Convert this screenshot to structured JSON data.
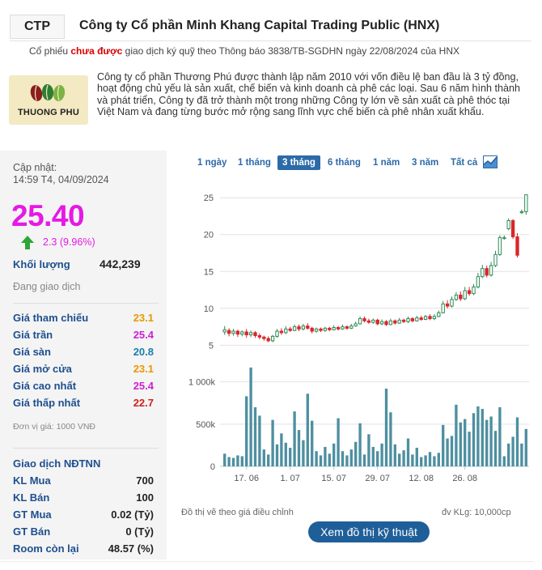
{
  "header": {
    "ticker": "CTP",
    "company_name": "Công ty Cổ phần Minh Khang Capital Trading Public (HNX)",
    "margin_note_before": "Cổ phiếu ",
    "margin_note_highlight": "chưa được",
    "margin_note_after": " giao dịch ký quỹ theo Thông báo 3838/TB-SGDHN ngày 22/08/2024 của HNX"
  },
  "logo": {
    "text": "THUONG PHU"
  },
  "description": "Công ty cổ phần Thương Phú được thành lập năm 2010 với vốn điều lệ ban đầu là 3 tỷ đồng, hoạt động chủ yếu là sản xuất, chế biến và kinh doanh cà phê các loại. Sau 6 năm hình thành và phát triển, Công ty đã trở thành một trong những Công ty lớn về sản xuất cà phê thóc tại Việt Nam và đang từng bước mở rộng sang lĩnh vực chế biến cà phê nhân xuất khẩu.",
  "quote": {
    "updated_label": "Cập nhật:",
    "updated_time": "14:59 T4, 04/09/2024",
    "price": "25.40",
    "change": "2.3 (9.96%)",
    "volume_label": "Khối lượng",
    "volume": "442,239",
    "status": "Đang giao dịch"
  },
  "price_rows": [
    {
      "label": "Giá tham chiếu",
      "value": "23.1",
      "color": "#e69a00"
    },
    {
      "label": "Giá trần",
      "value": "25.4",
      "color": "#d11fd1"
    },
    {
      "label": "Giá sàn",
      "value": "20.8",
      "color": "#1a7fae"
    },
    {
      "label": "Giá mở cửa",
      "value": "23.1",
      "color": "#e69a00"
    },
    {
      "label": "Giá cao nhất",
      "value": "25.4",
      "color": "#d11fd1"
    },
    {
      "label": "Giá thấp nhất",
      "value": "22.7",
      "color": "#d11f1f"
    }
  ],
  "unit_note": "Đơn vị giá: 1000 VNĐ",
  "foreign": {
    "title": "Giao dịch NĐTNN",
    "rows": [
      {
        "label": "KL Mua",
        "value": "700"
      },
      {
        "label": "KL Bán",
        "value": "100"
      },
      {
        "label": "GT Mua",
        "value": "0.02 (Tỷ)"
      },
      {
        "label": "GT Bán",
        "value": "0 (Tỷ)"
      },
      {
        "label": "Room còn lại",
        "value": "48.57 (%)"
      }
    ]
  },
  "range_tabs": [
    "1 ngày",
    "1 tháng",
    "3 tháng",
    "6 tháng",
    "1 năm",
    "3 năm",
    "Tất cả"
  ],
  "active_tab": 2,
  "chart_note": "Đồ thị vẽ theo giá điều chỉnh",
  "volume_note": "đv KLg: 10,000cp",
  "tech_button": "Xem đồ thị kỹ thuật",
  "colors": {
    "up": "#2e8b57",
    "down": "#d9262b",
    "volume": "#4e8fa0",
    "accent": "#2d6aa8",
    "price": "#e619e6"
  },
  "chart_data": {
    "type": "candlestick",
    "price_axis": {
      "ticks": [
        5,
        10,
        15,
        20,
        25
      ],
      "range": [
        3.5,
        27
      ]
    },
    "volume_axis": {
      "ticks": [
        0,
        500000,
        1000000
      ],
      "tick_labels": [
        "0",
        "500k",
        "1 000k"
      ],
      "range": [
        0,
        1150000
      ]
    },
    "x_tick_labels": [
      "17. 06",
      "1. 07",
      "15. 07",
      "29. 07",
      "12. 08",
      "26. 08"
    ],
    "candles": [
      {
        "o": 6.8,
        "c": 7.1,
        "h": 7.6,
        "l": 6.4,
        "v": 150000
      },
      {
        "o": 7.0,
        "c": 6.6,
        "h": 7.3,
        "l": 6.2,
        "v": 110000
      },
      {
        "o": 6.6,
        "c": 6.9,
        "h": 7.2,
        "l": 6.3,
        "v": 100000
      },
      {
        "o": 6.9,
        "c": 6.5,
        "h": 7.1,
        "l": 6.1,
        "v": 130000
      },
      {
        "o": 6.5,
        "c": 6.8,
        "h": 7.0,
        "l": 6.2,
        "v": 120000
      },
      {
        "o": 6.8,
        "c": 6.4,
        "h": 7.2,
        "l": 6.0,
        "v": 830000
      },
      {
        "o": 6.4,
        "c": 6.7,
        "h": 7.0,
        "l": 6.1,
        "v": 1170000
      },
      {
        "o": 6.7,
        "c": 6.3,
        "h": 6.9,
        "l": 6.0,
        "v": 700000
      },
      {
        "o": 6.3,
        "c": 6.1,
        "h": 6.6,
        "l": 5.8,
        "v": 600000
      },
      {
        "o": 6.1,
        "c": 5.9,
        "h": 6.3,
        "l": 5.6,
        "v": 200000
      },
      {
        "o": 5.9,
        "c": 5.6,
        "h": 6.2,
        "l": 5.4,
        "v": 140000
      },
      {
        "o": 5.6,
        "c": 6.2,
        "h": 6.4,
        "l": 5.4,
        "v": 550000
      },
      {
        "o": 6.2,
        "c": 6.9,
        "h": 7.2,
        "l": 6.0,
        "v": 260000
      },
      {
        "o": 6.9,
        "c": 6.7,
        "h": 7.3,
        "l": 6.4,
        "v": 390000
      },
      {
        "o": 6.7,
        "c": 7.2,
        "h": 7.6,
        "l": 6.5,
        "v": 280000
      },
      {
        "o": 7.2,
        "c": 7.0,
        "h": 7.5,
        "l": 6.8,
        "v": 220000
      },
      {
        "o": 7.0,
        "c": 7.5,
        "h": 7.8,
        "l": 6.9,
        "v": 650000
      },
      {
        "o": 7.5,
        "c": 7.2,
        "h": 7.8,
        "l": 6.9,
        "v": 430000
      },
      {
        "o": 7.2,
        "c": 7.6,
        "h": 7.9,
        "l": 7.0,
        "v": 310000
      },
      {
        "o": 7.6,
        "c": 7.3,
        "h": 8.0,
        "l": 7.1,
        "v": 860000
      },
      {
        "o": 7.3,
        "c": 6.9,
        "h": 7.5,
        "l": 6.6,
        "v": 540000
      },
      {
        "o": 6.9,
        "c": 7.2,
        "h": 7.4,
        "l": 6.7,
        "v": 180000
      },
      {
        "o": 7.2,
        "c": 7.0,
        "h": 7.4,
        "l": 6.8,
        "v": 130000
      },
      {
        "o": 7.0,
        "c": 7.3,
        "h": 7.5,
        "l": 6.8,
        "v": 230000
      },
      {
        "o": 7.3,
        "c": 7.1,
        "h": 7.5,
        "l": 6.9,
        "v": 150000
      },
      {
        "o": 7.1,
        "c": 7.4,
        "h": 7.7,
        "l": 7.0,
        "v": 270000
      },
      {
        "o": 7.4,
        "c": 7.2,
        "h": 7.6,
        "l": 7.0,
        "v": 570000
      },
      {
        "o": 7.2,
        "c": 7.5,
        "h": 7.8,
        "l": 7.1,
        "v": 180000
      },
      {
        "o": 7.5,
        "c": 7.3,
        "h": 7.7,
        "l": 7.1,
        "v": 130000
      },
      {
        "o": 7.3,
        "c": 7.6,
        "h": 7.9,
        "l": 7.2,
        "v": 200000
      },
      {
        "o": 7.6,
        "c": 7.9,
        "h": 8.2,
        "l": 7.5,
        "v": 290000
      },
      {
        "o": 7.9,
        "c": 8.6,
        "h": 8.9,
        "l": 7.8,
        "v": 510000
      },
      {
        "o": 8.6,
        "c": 8.3,
        "h": 8.9,
        "l": 8.1,
        "v": 140000
      },
      {
        "o": 8.3,
        "c": 8.1,
        "h": 8.6,
        "l": 7.9,
        "v": 380000
      },
      {
        "o": 8.1,
        "c": 8.4,
        "h": 8.6,
        "l": 7.9,
        "v": 230000
      },
      {
        "o": 8.4,
        "c": 7.9,
        "h": 8.6,
        "l": 7.7,
        "v": 180000
      },
      {
        "o": 7.9,
        "c": 8.2,
        "h": 8.5,
        "l": 7.7,
        "v": 270000
      },
      {
        "o": 8.2,
        "c": 7.8,
        "h": 8.4,
        "l": 7.6,
        "v": 920000
      },
      {
        "o": 7.8,
        "c": 8.3,
        "h": 8.6,
        "l": 7.7,
        "v": 640000
      },
      {
        "o": 8.3,
        "c": 8.0,
        "h": 8.5,
        "l": 7.8,
        "v": 260000
      },
      {
        "o": 8.0,
        "c": 8.4,
        "h": 8.7,
        "l": 7.9,
        "v": 150000
      },
      {
        "o": 8.4,
        "c": 8.2,
        "h": 8.6,
        "l": 8.0,
        "v": 190000
      },
      {
        "o": 8.2,
        "c": 8.6,
        "h": 8.9,
        "l": 8.0,
        "v": 330000
      },
      {
        "o": 8.6,
        "c": 8.3,
        "h": 8.8,
        "l": 8.1,
        "v": 140000
      },
      {
        "o": 8.3,
        "c": 8.7,
        "h": 9.0,
        "l": 8.2,
        "v": 220000
      },
      {
        "o": 8.7,
        "c": 8.5,
        "h": 9.0,
        "l": 8.3,
        "v": 110000
      },
      {
        "o": 8.5,
        "c": 8.9,
        "h": 9.1,
        "l": 8.4,
        "v": 130000
      },
      {
        "o": 8.9,
        "c": 8.6,
        "h": 9.2,
        "l": 8.4,
        "v": 170000
      },
      {
        "o": 8.6,
        "c": 8.9,
        "h": 9.2,
        "l": 8.4,
        "v": 120000
      },
      {
        "o": 8.9,
        "c": 9.4,
        "h": 9.7,
        "l": 8.8,
        "v": 160000
      },
      {
        "o": 9.4,
        "c": 10.6,
        "h": 11.0,
        "l": 9.3,
        "v": 490000
      },
      {
        "o": 10.6,
        "c": 10.3,
        "h": 11.1,
        "l": 10.0,
        "v": 330000
      },
      {
        "o": 10.3,
        "c": 11.2,
        "h": 11.6,
        "l": 10.1,
        "v": 360000
      },
      {
        "o": 11.2,
        "c": 11.8,
        "h": 12.2,
        "l": 11.0,
        "v": 730000
      },
      {
        "o": 11.8,
        "c": 11.3,
        "h": 12.3,
        "l": 11.0,
        "v": 520000
      },
      {
        "o": 11.3,
        "c": 12.4,
        "h": 12.9,
        "l": 11.1,
        "v": 560000
      },
      {
        "o": 12.4,
        "c": 12.0,
        "h": 12.9,
        "l": 11.7,
        "v": 410000
      },
      {
        "o": 12.0,
        "c": 12.9,
        "h": 13.3,
        "l": 11.8,
        "v": 630000
      },
      {
        "o": 12.9,
        "c": 14.3,
        "h": 14.8,
        "l": 12.7,
        "v": 710000
      },
      {
        "o": 14.3,
        "c": 15.4,
        "h": 15.9,
        "l": 14.1,
        "v": 680000
      },
      {
        "o": 15.4,
        "c": 14.5,
        "h": 15.8,
        "l": 14.2,
        "v": 550000
      },
      {
        "o": 14.5,
        "c": 15.8,
        "h": 16.3,
        "l": 14.3,
        "v": 590000
      },
      {
        "o": 15.8,
        "c": 17.3,
        "h": 17.8,
        "l": 15.6,
        "v": 420000
      },
      {
        "o": 17.3,
        "c": 19.6,
        "h": 19.9,
        "l": 17.1,
        "v": 700000
      },
      {
        "o": 19.6,
        "c": 19.6,
        "h": 19.9,
        "l": 19.3,
        "v": 120000
      },
      {
        "o": 20.8,
        "c": 21.9,
        "h": 22.2,
        "l": 20.6,
        "v": 270000
      },
      {
        "o": 21.9,
        "c": 19.7,
        "h": 22.1,
        "l": 19.4,
        "v": 350000
      },
      {
        "o": 19.7,
        "c": 17.2,
        "h": 20.2,
        "l": 16.9,
        "v": 580000
      },
      {
        "o": 23.1,
        "c": 23.1,
        "h": 23.4,
        "l": 22.8,
        "v": 270000
      },
      {
        "o": 23.1,
        "c": 25.4,
        "h": 25.4,
        "l": 22.7,
        "v": 442239
      }
    ]
  }
}
